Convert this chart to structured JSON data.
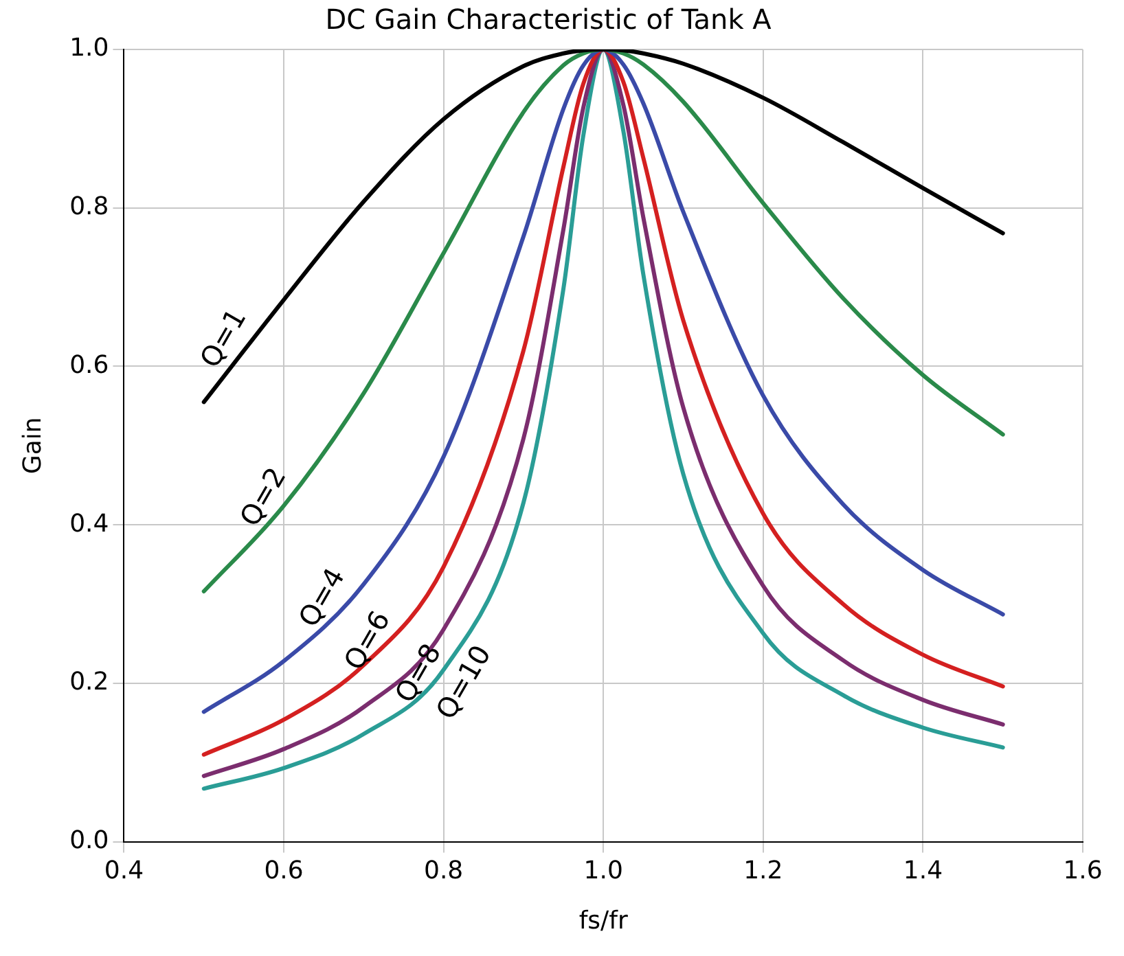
{
  "chart_data": {
    "type": "line",
    "title": "DC Gain Characteristic of Tank A",
    "xlabel": "fs/fr",
    "ylabel": "Gain",
    "x": [
      0.5,
      0.6,
      0.7,
      0.8,
      0.9,
      0.95,
      0.975,
      1.0,
      1.025,
      1.05,
      1.1,
      1.2,
      1.3,
      1.4,
      1.5
    ],
    "series": [
      {
        "name": "Q=1",
        "color": "#000000",
        "values": [
          0.555,
          0.684,
          0.808,
          0.912,
          0.979,
          0.995,
          0.999,
          1,
          0.999,
          0.995,
          0.982,
          0.939,
          0.883,
          0.825,
          0.768
        ]
      },
      {
        "name": "Q=2",
        "color": "#2a8a4a",
        "values": [
          0.316,
          0.424,
          0.566,
          0.743,
          0.921,
          0.98,
          0.995,
          1,
          0.995,
          0.981,
          0.934,
          0.806,
          0.686,
          0.589,
          0.514
        ]
      },
      {
        "name": "Q=4",
        "color": "#3a4aa8",
        "values": [
          0.164,
          0.228,
          0.325,
          0.486,
          0.764,
          0.925,
          0.98,
          1,
          0.981,
          0.932,
          0.795,
          0.563,
          0.426,
          0.343,
          0.287
        ]
      },
      {
        "name": "Q=6",
        "color": "#d42020",
        "values": [
          0.11,
          0.154,
          0.223,
          0.347,
          0.62,
          0.852,
          0.957,
          1,
          0.959,
          0.863,
          0.658,
          0.414,
          0.3,
          0.236,
          0.196
        ]
      },
      {
        "name": "Q=8",
        "color": "#7b2d6e",
        "values": [
          0.083,
          0.117,
          0.17,
          0.268,
          0.509,
          0.773,
          0.927,
          1,
          0.93,
          0.788,
          0.548,
          0.323,
          0.229,
          0.179,
          0.148
        ]
      },
      {
        "name": "Q=10",
        "color": "#2a9d96",
        "values": [
          0.067,
          0.093,
          0.136,
          0.217,
          0.428,
          0.698,
          0.892,
          1,
          0.897,
          0.716,
          0.464,
          0.263,
          0.185,
          0.144,
          0.119
        ]
      }
    ],
    "xlim": [
      0.4,
      1.6
    ],
    "xticks": [
      {
        "value": 0.4,
        "label": "0.4"
      },
      {
        "value": 0.6,
        "label": "0.6"
      },
      {
        "value": 0.8,
        "label": "0.8"
      },
      {
        "value": 1.0,
        "label": "1.0"
      },
      {
        "value": 1.2,
        "label": "1.2"
      },
      {
        "value": 1.4,
        "label": "1.4"
      },
      {
        "value": 1.6,
        "label": "1.6"
      }
    ],
    "ylim": [
      0,
      1
    ],
    "yticks": [
      {
        "value": 0,
        "label": "0.0"
      },
      {
        "value": 0.2,
        "label": "0.2"
      },
      {
        "value": 0.4,
        "label": "0.4"
      },
      {
        "value": 0.6,
        "label": "0.6"
      },
      {
        "value": 0.8,
        "label": "0.8"
      },
      {
        "value": 1.0,
        "label": "1.0"
      }
    ],
    "grid": true,
    "legend": false,
    "marker": "none",
    "line_style": "solid"
  }
}
